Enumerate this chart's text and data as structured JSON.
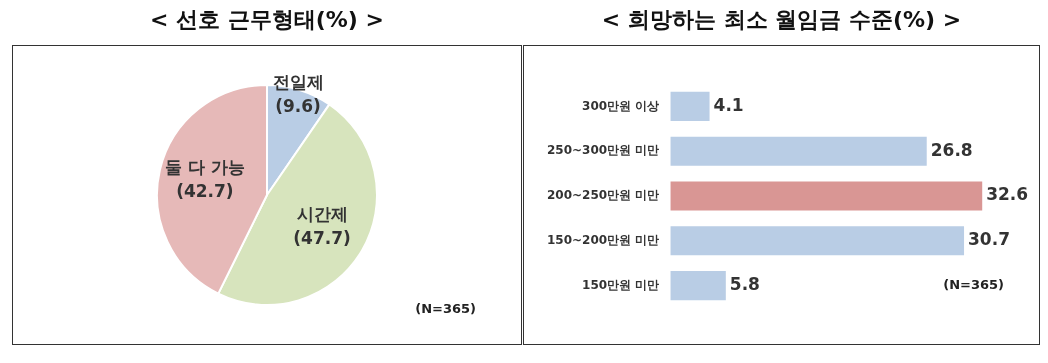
{
  "chart_data": [
    {
      "type": "pie",
      "title": "< 선호 근무형태(%) >",
      "categories": [
        "전일제",
        "시간제",
        "둘 다 가능"
      ],
      "values": [
        9.6,
        47.7,
        42.7
      ],
      "colors": [
        "#b9cde5",
        "#d7e4bd",
        "#e6b9b8"
      ],
      "value_labels": [
        "(9.6)",
        "(47.7)",
        "(42.7)"
      ],
      "annotations": [
        "(N=365)"
      ]
    },
    {
      "type": "bar",
      "orientation": "horizontal",
      "title": "< 희망하는 최소 월임금 수준(%) >",
      "categories": [
        "300만원 이상",
        "250~300만원 미만",
        "200~250만원 미만",
        "150~200만원 미만",
        "150만원 미만"
      ],
      "values": [
        4.1,
        26.8,
        32.6,
        30.7,
        5.8
      ],
      "colors": [
        "#b9cde5",
        "#b9cde5",
        "#d99694",
        "#b9cde5",
        "#b9cde5"
      ],
      "data_labels": true,
      "annotations": [
        "(N=365)"
      ]
    }
  ]
}
